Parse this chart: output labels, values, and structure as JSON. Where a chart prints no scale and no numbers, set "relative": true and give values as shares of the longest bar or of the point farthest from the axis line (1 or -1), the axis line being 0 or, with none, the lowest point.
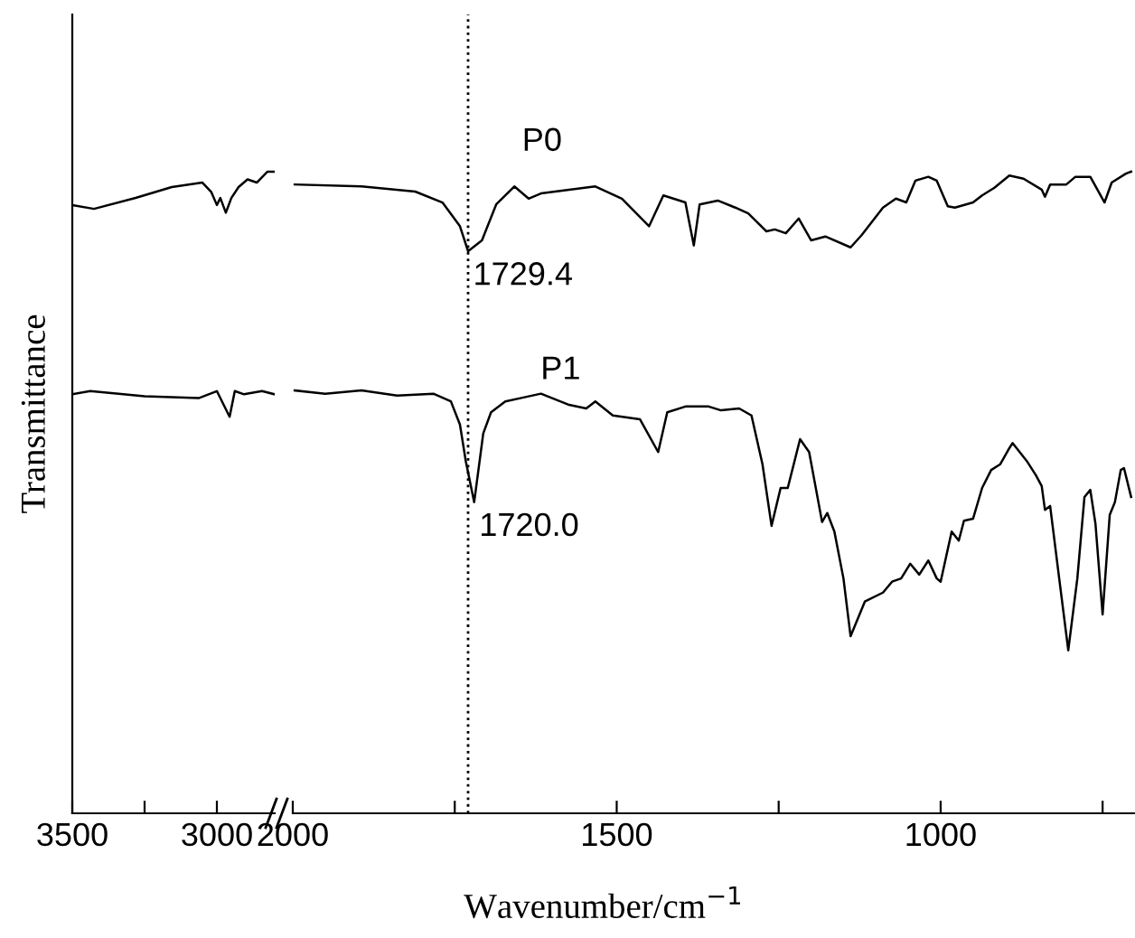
{
  "chart_data": [
    {
      "type": "line",
      "relative": true,
      "ylabel": "Transmittance",
      "xlim": [
        3500,
        2800
      ],
      "xticks": [
        3500,
        {
          "value": 3250,
          "label": null
        },
        3000
      ],
      "tick_labels": "x",
      "series": [
        {
          "color": "#000000",
          "x": [
            3500,
            3425,
            3281,
            3156,
            3050,
            3019,
            3000,
            2988,
            2969,
            2950,
            2925,
            2894,
            2862,
            2825,
            2800
          ],
          "values": [
            0.948,
            0.942,
            0.959,
            0.976,
            0.983,
            0.968,
            0.948,
            0.959,
            0.936,
            0.959,
            0.976,
            0.988,
            0.983,
            1.0,
            1.0
          ]
        },
        {
          "color": "#000000",
          "x": [
            3500,
            3438,
            3250,
            3063,
            3000,
            2956,
            2938,
            2906,
            2844,
            2800
          ],
          "values": [
            0.653,
            0.658,
            0.65,
            0.647,
            0.658,
            0.618,
            0.658,
            0.653,
            0.658,
            0.653
          ]
        }
      ]
    },
    {
      "type": "line",
      "relative": true,
      "xlabel": "Wavenumber/cm$^{−1}$",
      "xlim": [
        2000,
        700
      ],
      "xticks": [
        2000,
        {
          "value": 1750,
          "label": null
        },
        1500,
        {
          "value": 1250,
          "label": null
        },
        1000,
        {
          "value": 750,
          "label": null
        }
      ],
      "tick_labels": "x",
      "ref_lines": [
        {
          "axis": "x",
          "value": 1729.4,
          "color": "#000000",
          "line_style": "dotted"
        }
      ],
      "annotations": [
        "P0",
        "P1",
        {
          "text": "1729.4",
          "x": 1729.4,
          "y": 0.876
        },
        {
          "text": "1720.0",
          "x": 1720.0,
          "y": 0.485
        }
      ],
      "series": [
        {
          "color": "#000000",
          "x": [
            1997,
            1894,
            1811,
            1769,
            1742,
            1729.4,
            1708,
            1686,
            1658,
            1636,
            1617,
            1533,
            1492,
            1450,
            1428,
            1394,
            1381,
            1372,
            1344,
            1317,
            1297,
            1269,
            1256,
            1239,
            1219,
            1200,
            1178,
            1139,
            1122,
            1089,
            1069,
            1053,
            1039,
            1019,
            1006,
            989,
            978,
            950,
            936,
            917,
            894,
            872,
            844,
            839,
            831,
            806,
            792,
            769,
            747,
            736,
            714,
            706
          ],
          "values": [
            0.98,
            0.977,
            0.969,
            0.952,
            0.915,
            0.876,
            0.893,
            0.949,
            0.977,
            0.958,
            0.966,
            0.977,
            0.958,
            0.915,
            0.963,
            0.952,
            0.885,
            0.949,
            0.955,
            0.944,
            0.935,
            0.907,
            0.91,
            0.904,
            0.927,
            0.893,
            0.899,
            0.882,
            0.901,
            0.944,
            0.958,
            0.952,
            0.986,
            0.992,
            0.986,
            0.946,
            0.944,
            0.952,
            0.963,
            0.975,
            0.994,
            0.989,
            0.972,
            0.961,
            0.98,
            0.98,
            0.992,
            0.992,
            0.952,
            0.983,
            0.997,
            1.0
          ]
        },
        {
          "color": "#000000",
          "x": [
            1997,
            1950,
            1894,
            1839,
            1783,
            1756,
            1742,
            1733,
            1720.0,
            1706,
            1694,
            1672,
            1644,
            1617,
            1575,
            1547,
            1533,
            1506,
            1464,
            1436,
            1422,
            1394,
            1358,
            1339,
            1311,
            1292,
            1275,
            1261,
            1247,
            1236,
            1217,
            1203,
            1183,
            1175,
            1164,
            1150,
            1139,
            1117,
            1089,
            1075,
            1061,
            1047,
            1033,
            1019,
            1006,
            1000,
            983,
            972,
            964,
            950,
            936,
            922,
            908,
            894,
            889,
            867,
            853,
            844,
            839,
            831,
            817,
            803,
            789,
            778,
            769,
            761,
            750,
            739,
            731,
            722,
            717,
            706
          ],
          "values": [
            0.659,
            0.654,
            0.659,
            0.651,
            0.654,
            0.642,
            0.606,
            0.549,
            0.485,
            0.592,
            0.625,
            0.642,
            0.648,
            0.654,
            0.637,
            0.631,
            0.642,
            0.62,
            0.614,
            0.563,
            0.625,
            0.634,
            0.634,
            0.628,
            0.631,
            0.62,
            0.544,
            0.448,
            0.507,
            0.507,
            0.583,
            0.563,
            0.454,
            0.468,
            0.439,
            0.366,
            0.276,
            0.33,
            0.344,
            0.361,
            0.366,
            0.389,
            0.372,
            0.394,
            0.366,
            0.361,
            0.439,
            0.425,
            0.456,
            0.459,
            0.507,
            0.535,
            0.544,
            0.569,
            0.577,
            0.549,
            0.527,
            0.51,
            0.473,
            0.479,
            0.366,
            0.254,
            0.366,
            0.493,
            0.504,
            0.451,
            0.31,
            0.465,
            0.485,
            0.535,
            0.538,
            0.493
          ]
        }
      ]
    }
  ]
}
